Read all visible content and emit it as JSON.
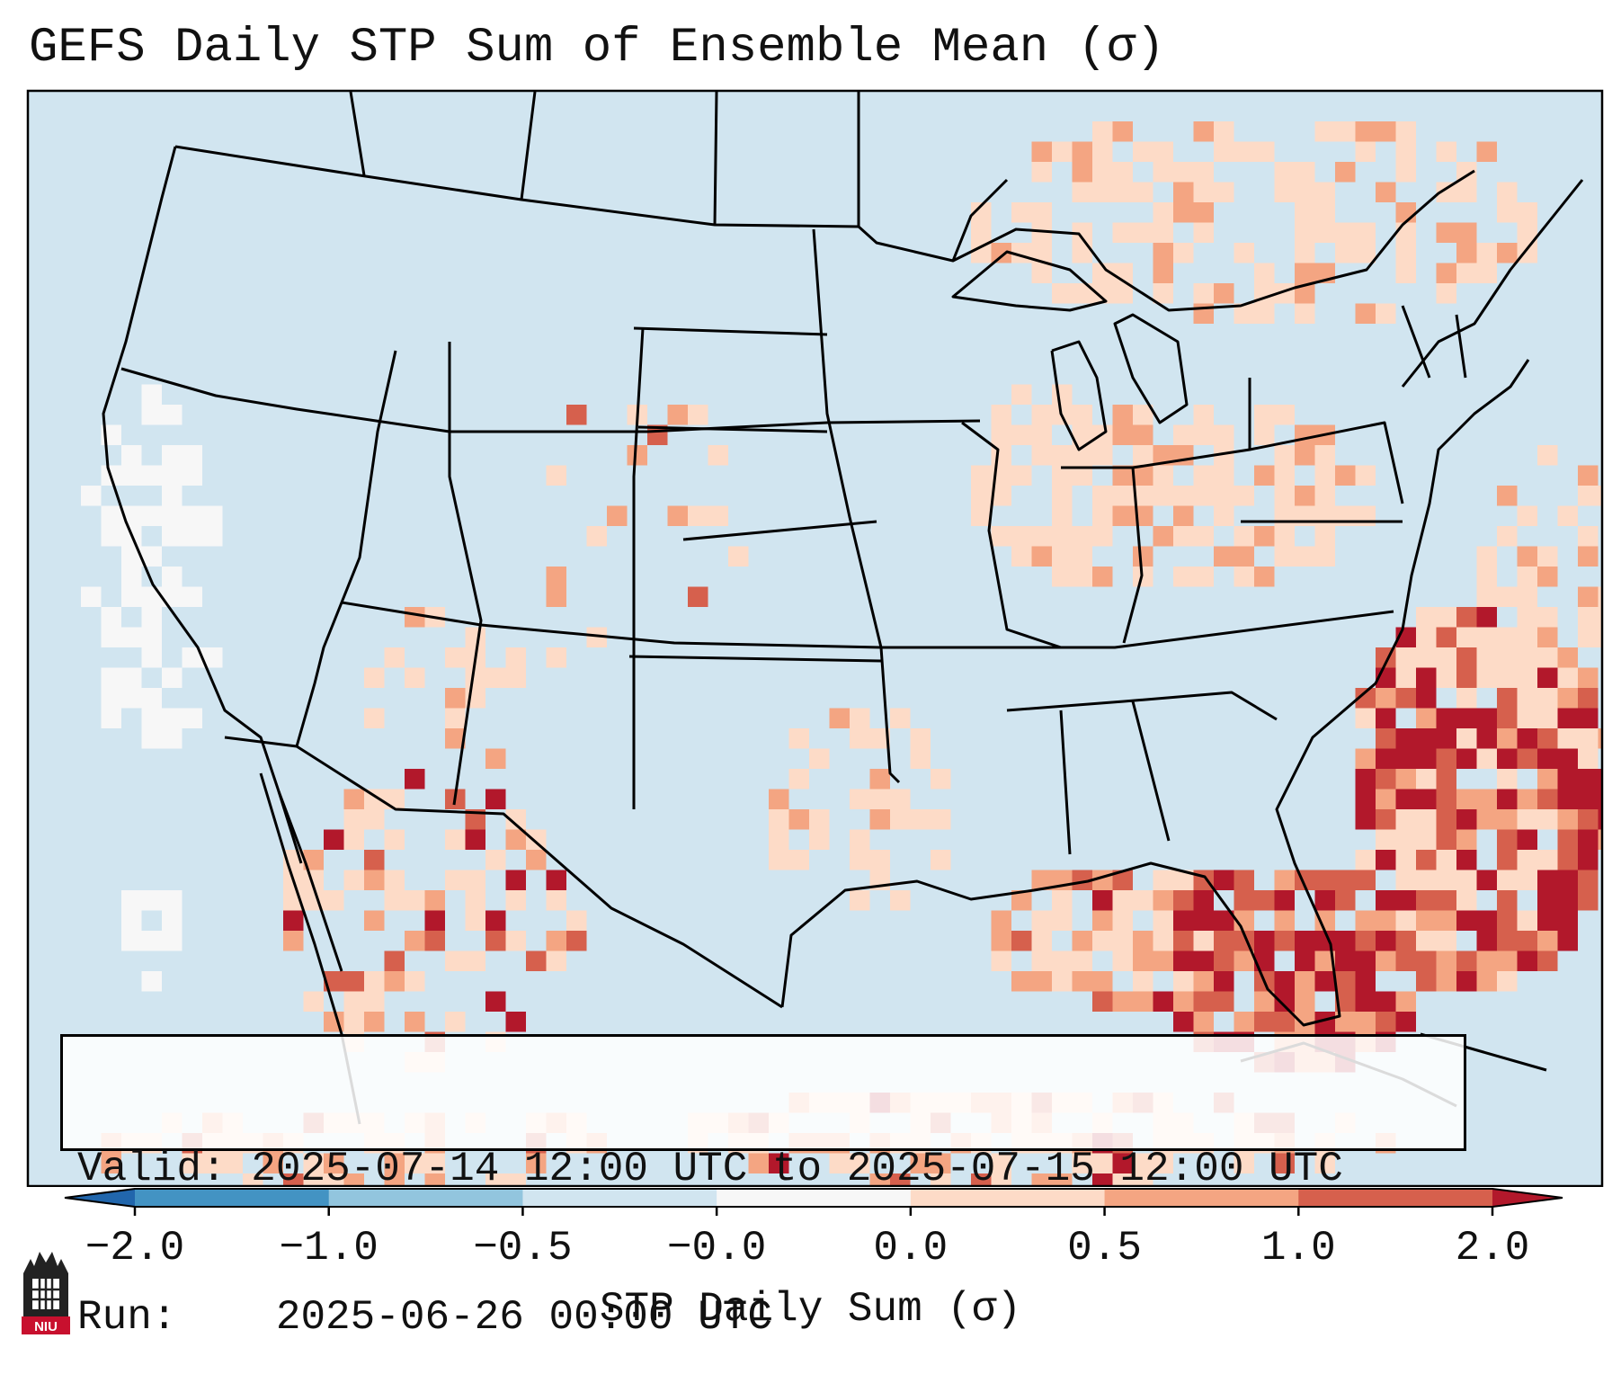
{
  "title": "GEFS Daily STP Sum of Ensemble Mean (σ)",
  "info": {
    "valid_label": "Valid:",
    "valid_value": "2025-07-14 12:00 UTC to 2025-07-15 12:00 UTC",
    "run_label": "Run:",
    "run_value": "2025-06-26 00:00 UTC"
  },
  "colorbar": {
    "label": "STP Daily Sum (σ)",
    "ticks": [
      "−2.0",
      "−1.0",
      "−0.5",
      "−0.0",
      "0.0",
      "0.5",
      "1.0",
      "2.0"
    ],
    "bins": [
      {
        "range": "< -2.0",
        "color": "#2166ac"
      },
      {
        "range": "-2.0 to -1.0",
        "color": "#4393c3"
      },
      {
        "range": "-1.0 to -0.5",
        "color": "#92c5de"
      },
      {
        "range": "-0.5 to -0.0",
        "color": "#d1e5f0"
      },
      {
        "range": "-0.0 to 0.0",
        "color": "#f7f7f7"
      },
      {
        "range": "0.0 to 0.5",
        "color": "#fddbc7"
      },
      {
        "range": "0.5 to 1.0",
        "color": "#f4a582"
      },
      {
        "range": "1.0 to 2.0",
        "color": "#d6604d"
      },
      {
        "range": "> 2.0",
        "color": "#b2182b"
      }
    ]
  },
  "logo": {
    "text": "NIU"
  },
  "map": {
    "background_color": "#d1e5f0",
    "regions": [
      {
        "name": "gulf-of-mexico-east",
        "level": 3
      },
      {
        "name": "gulf-stream-offshore",
        "level": 4
      },
      {
        "name": "florida-peninsula",
        "level": 4
      },
      {
        "name": "ohio-valley",
        "level": 1
      },
      {
        "name": "great-lakes-canada",
        "level": 1
      },
      {
        "name": "mexico-northwest",
        "level": 2
      },
      {
        "name": "pacific-offshore",
        "level": 0
      }
    ]
  }
}
